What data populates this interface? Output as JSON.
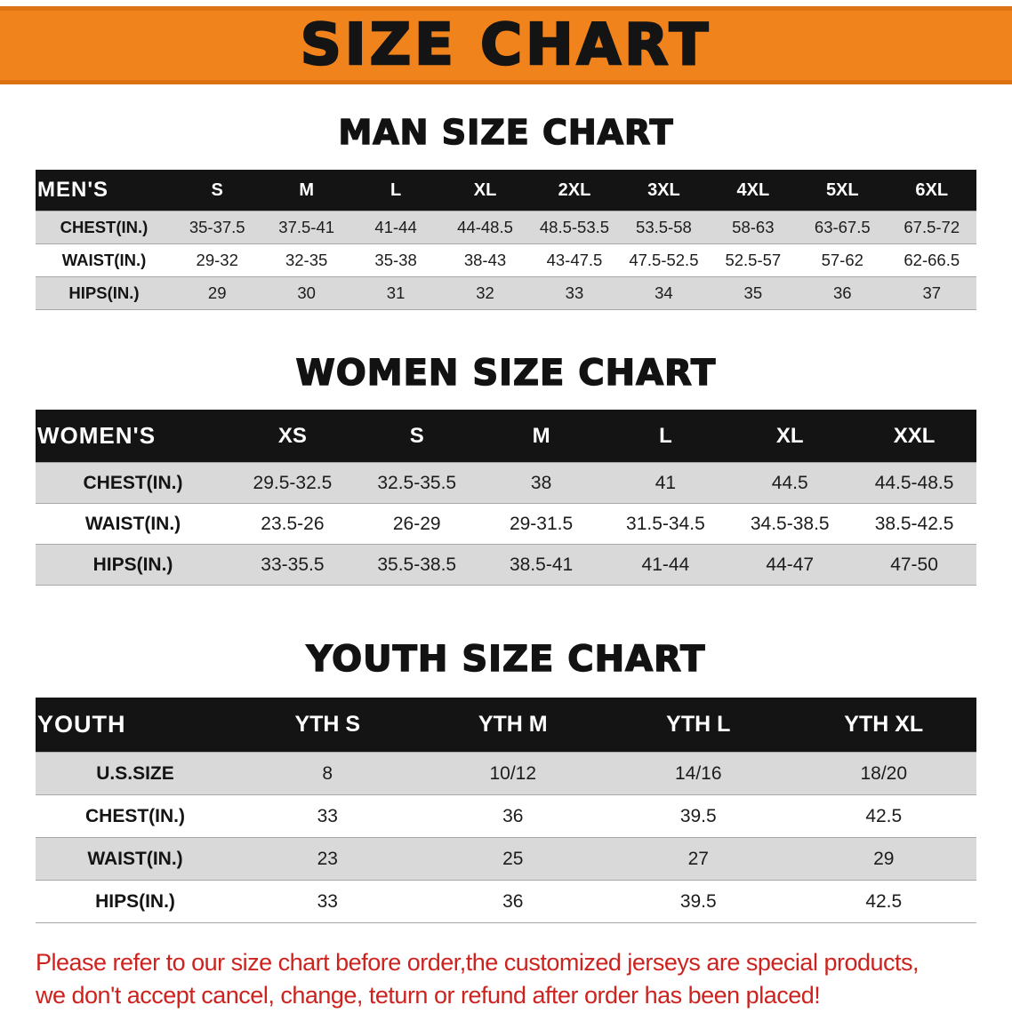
{
  "banner": {
    "title": "SIZE CHART",
    "bg_color": "#f1831d"
  },
  "footer": {
    "line1": "Please refer to our size chart before order,the customized jerseys are special products,",
    "line2": "we don't accept cancel, change, teturn or refund after order has been placed!",
    "color": "#cd231f"
  },
  "chart_data": [
    {
      "type": "table",
      "title": "MAN SIZE CHART",
      "corner_label": "MEN'S",
      "columns": [
        "S",
        "M",
        "L",
        "XL",
        "2XL",
        "3XL",
        "4XL",
        "5XL",
        "6XL"
      ],
      "rows": [
        {
          "label": "CHEST(IN.)",
          "values": [
            "35-37.5",
            "37.5-41",
            "41-44",
            "44-48.5",
            "48.5-53.5",
            "53.5-58",
            "58-63",
            "63-67.5",
            "67.5-72"
          ]
        },
        {
          "label": "WAIST(IN.)",
          "values": [
            "29-32",
            "32-35",
            "35-38",
            "38-43",
            "43-47.5",
            "47.5-52.5",
            "52.5-57",
            "57-62",
            "62-66.5"
          ]
        },
        {
          "label": "HIPS(IN.)",
          "values": [
            "29",
            "30",
            "31",
            "32",
            "33",
            "34",
            "35",
            "36",
            "37"
          ]
        }
      ],
      "header_bg": "#141414",
      "stripe_color": "#d9d9d9"
    },
    {
      "type": "table",
      "title": "WOMEN SIZE CHART",
      "corner_label": "WOMEN'S",
      "columns": [
        "XS",
        "S",
        "M",
        "L",
        "XL",
        "XXL"
      ],
      "rows": [
        {
          "label": "CHEST(IN.)",
          "values": [
            "29.5-32.5",
            "32.5-35.5",
            "38",
            "41",
            "44.5",
            "44.5-48.5"
          ]
        },
        {
          "label": "WAIST(IN.)",
          "values": [
            "23.5-26",
            "26-29",
            "29-31.5",
            "31.5-34.5",
            "34.5-38.5",
            "38.5-42.5"
          ]
        },
        {
          "label": "HIPS(IN.)",
          "values": [
            "33-35.5",
            "35.5-38.5",
            "38.5-41",
            "41-44",
            "44-47",
            "47-50"
          ]
        }
      ],
      "header_bg": "#141414",
      "stripe_color": "#d9d9d9"
    },
    {
      "type": "table",
      "title": "YOUTH SIZE CHART",
      "corner_label": "YOUTH",
      "columns": [
        "YTH S",
        "YTH M",
        "YTH L",
        "YTH XL"
      ],
      "rows": [
        {
          "label": "U.S.SIZE",
          "values": [
            "8",
            "10/12",
            "14/16",
            "18/20"
          ]
        },
        {
          "label": "CHEST(IN.)",
          "values": [
            "33",
            "36",
            "39.5",
            "42.5"
          ]
        },
        {
          "label": "WAIST(IN.)",
          "values": [
            "23",
            "25",
            "27",
            "29"
          ]
        },
        {
          "label": "HIPS(IN.)",
          "values": [
            "33",
            "36",
            "39.5",
            "42.5"
          ]
        }
      ],
      "header_bg": "#141414",
      "stripe_color": "#d9d9d9"
    }
  ]
}
